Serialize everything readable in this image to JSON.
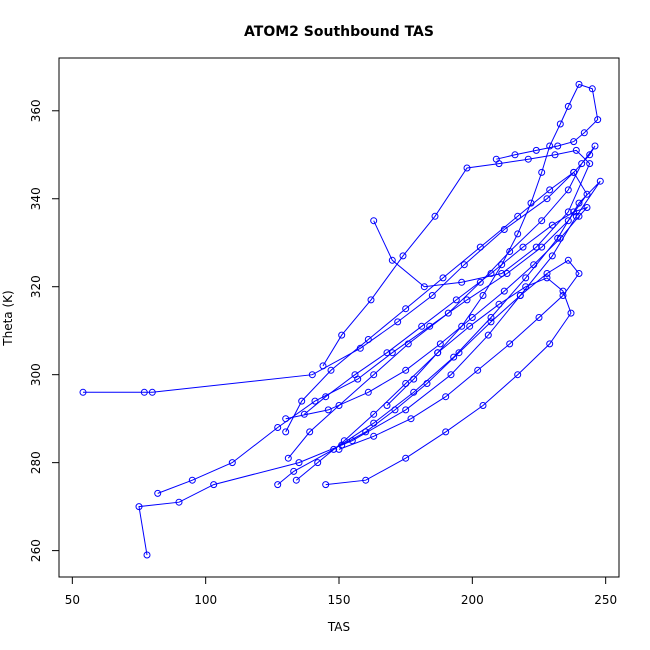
{
  "chart_data": {
    "type": "line",
    "title": "ATOM2 Southbound TAS",
    "xlabel": "TAS",
    "ylabel": "Theta (K)",
    "xlim": [
      45,
      255
    ],
    "ylim": [
      254,
      372
    ],
    "x_ticks": [
      50,
      100,
      150,
      200,
      250
    ],
    "y_ticks": [
      260,
      280,
      300,
      320,
      340,
      360
    ],
    "x_tick_labels": [
      "50",
      "100",
      "150",
      "200",
      "250"
    ],
    "y_tick_labels": [
      "260",
      "280",
      "300",
      "320",
      "340",
      "360"
    ],
    "grid": false,
    "legend": "none",
    "marker": "open-circle",
    "series_color": "#0000ff",
    "series": [
      {
        "x": [
          54,
          77,
          80,
          140,
          158,
          172,
          185,
          197,
          212,
          228,
          238,
          244,
          246,
          241,
          236,
          226,
          214,
          203,
          191,
          176,
          163,
          150,
          139,
          131
        ],
        "y": [
          296,
          296,
          296,
          300,
          306,
          312,
          318,
          325,
          333,
          340,
          346,
          350,
          352,
          348,
          342,
          335,
          328,
          321,
          314,
          307,
          300,
          293,
          287,
          281
        ]
      },
      {
        "x": [
          78,
          75,
          90,
          103,
          135,
          155,
          175,
          192,
          206,
          218,
          230,
          239,
          248,
          240,
          232,
          220,
          207,
          193,
          178,
          163,
          148,
          133,
          127
        ],
        "y": [
          259,
          270,
          271,
          275,
          280,
          285,
          292,
          300,
          309,
          318,
          327,
          336,
          344,
          339,
          331,
          322,
          313,
          304,
          296,
          289,
          283,
          278,
          275
        ]
      },
      {
        "x": [
          82,
          95,
          110,
          127,
          141,
          157,
          170,
          184,
          198,
          213,
          226,
          236,
          243,
          238,
          229,
          217,
          203,
          189,
          175,
          161,
          147,
          136,
          130
        ],
        "y": [
          273,
          276,
          280,
          288,
          294,
          299,
          305,
          311,
          317,
          323,
          329,
          335,
          341,
          346,
          342,
          336,
          329,
          322,
          315,
          308,
          301,
          294,
          287
        ]
      },
      {
        "x": [
          163,
          170,
          182,
          196,
          211,
          224,
          236,
          244,
          239,
          231,
          221,
          210,
          198,
          186,
          174,
          162,
          151,
          144
        ],
        "y": [
          335,
          326,
          320,
          321,
          323,
          329,
          337,
          348,
          351,
          350,
          349,
          348,
          347,
          336,
          327,
          317,
          309,
          302
        ]
      },
      {
        "x": [
          209,
          216,
          224,
          232,
          238,
          242,
          247,
          245,
          240,
          236,
          233,
          229,
          226,
          222,
          217,
          211,
          204,
          196,
          187,
          178,
          168
        ],
        "y": [
          349,
          350,
          351,
          352,
          353,
          355,
          358,
          365,
          366,
          361,
          357,
          352,
          346,
          339,
          332,
          325,
          318,
          311,
          305,
          299,
          293
        ]
      },
      {
        "x": [
          145,
          160,
          175,
          190,
          204,
          217,
          229,
          237,
          234,
          228,
          220,
          210,
          199,
          187,
          175,
          163,
          152,
          142,
          134
        ],
        "y": [
          275,
          276,
          281,
          287,
          293,
          300,
          307,
          314,
          319,
          322,
          320,
          316,
          311,
          305,
          298,
          291,
          285,
          280,
          276
        ]
      },
      {
        "x": [
          130,
          146,
          161,
          175,
          188,
          200,
          212,
          223,
          233,
          240,
          243,
          238,
          230,
          219,
          207,
          194,
          181,
          168,
          156,
          145,
          137
        ],
        "y": [
          290,
          292,
          296,
          301,
          307,
          313,
          319,
          325,
          331,
          336,
          338,
          337,
          334,
          329,
          323,
          317,
          311,
          305,
          300,
          295,
          291
        ]
      },
      {
        "x": [
          150,
          163,
          177,
          190,
          202,
          214,
          225,
          234,
          240,
          236,
          228,
          218,
          207,
          195,
          183,
          171,
          160,
          151
        ],
        "y": [
          283,
          286,
          290,
          295,
          301,
          307,
          313,
          318,
          323,
          326,
          323,
          318,
          312,
          305,
          298,
          292,
          287,
          284
        ]
      }
    ]
  }
}
